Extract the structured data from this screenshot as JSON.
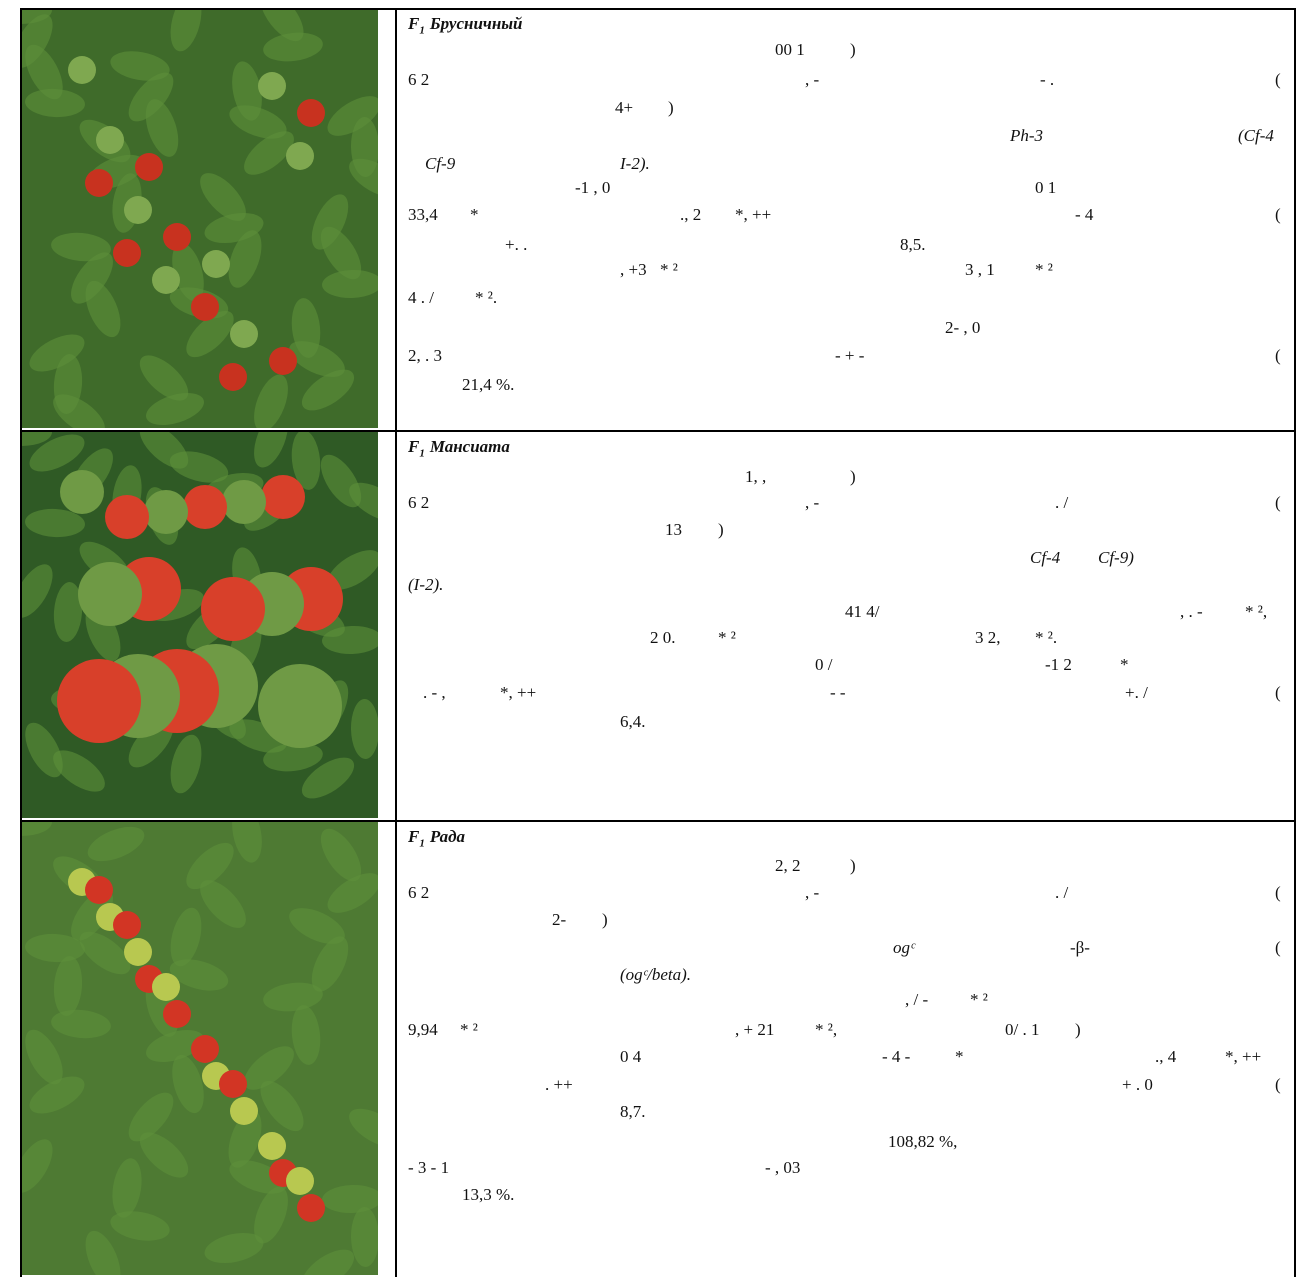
{
  "rows": [
    {
      "title": {
        "prefix": "F",
        "sub": "1",
        "name": "Брусничный"
      },
      "lines": [
        [
          "00 1",
          ")"
        ],
        [
          "6 2",
          ", -",
          "- .",
          "("
        ],
        [
          "4+",
          ")"
        ],
        [
          "Ph-3",
          "(Cf-4"
        ],
        [
          "Cf-9",
          "I-2)."
        ],
        [
          "-1 , 0",
          "0 1"
        ],
        [
          "33,4",
          "*",
          "., 2",
          "*, ++",
          "- 4",
          "("
        ],
        [
          "+. .",
          "8,5."
        ],
        [
          ", +3",
          "* ²",
          "3 , 1",
          "* ²"
        ],
        [
          "4 . /",
          "* ²."
        ],
        [
          "2- , 0"
        ],
        [
          "2, . 3",
          "- + -",
          "("
        ],
        [
          "21,4 %."
        ]
      ]
    },
    {
      "title": {
        "prefix": "F",
        "sub": "1",
        "name": "Мансиата"
      },
      "lines": [
        [
          "1, ,",
          ")"
        ],
        [
          "6 2",
          ", -",
          ". /",
          "("
        ],
        [
          "13",
          ")"
        ],
        [
          "Cf-4",
          "Cf-9)"
        ],
        [
          "(I-2)."
        ],
        [
          "41 4/",
          ", . -",
          "* ²,"
        ],
        [
          "2 0.",
          "* ²",
          "3 2,",
          "* ²."
        ],
        [
          "0 /",
          "-1 2",
          "*"
        ],
        [
          ". - ,",
          "*, ++",
          "- -",
          "+. /",
          "("
        ],
        [
          "6,4."
        ]
      ]
    },
    {
      "title": {
        "prefix": "F",
        "sub": "1",
        "name": "Рада"
      },
      "lines": [
        [
          "2, 2",
          ")"
        ],
        [
          "6 2",
          ", -",
          ". /",
          "("
        ],
        [
          "2-",
          ")"
        ],
        [
          "ogᶜ",
          "-β-",
          "("
        ],
        [
          "(ogᶜ/beta)."
        ],
        [
          ", / -",
          "* ²"
        ],
        [
          "9,94",
          "* ²",
          ", + 21",
          "* ²,",
          "0/ . 1",
          ")"
        ],
        [
          "0 4",
          "- 4 -",
          "*",
          "., 4",
          "*, ++"
        ],
        [
          ". ++",
          "+ . 0",
          "("
        ],
        [
          "8,7."
        ],
        [
          "108,82 %,"
        ],
        [
          "- 3 - 1",
          "- , 03"
        ],
        [
          "13,3 %."
        ]
      ]
    }
  ]
}
